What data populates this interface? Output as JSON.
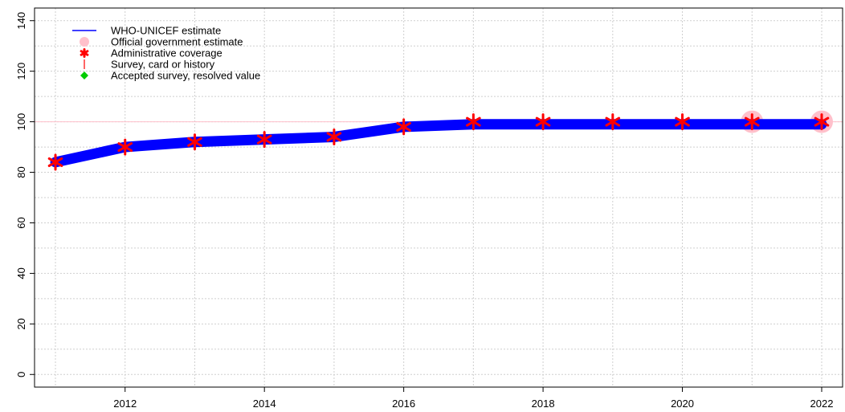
{
  "chart_data": {
    "type": "line",
    "title": "",
    "xlabel": "",
    "ylabel": "",
    "xlim": [
      2010.7,
      2022.3
    ],
    "ylim": [
      -5,
      145
    ],
    "x_ticks": [
      2012,
      2014,
      2016,
      2018,
      2020,
      2022
    ],
    "y_ticks": [
      0,
      20,
      40,
      60,
      80,
      100,
      120,
      140
    ],
    "grid": true,
    "reference_line": 100,
    "legend": {
      "position": "top-left",
      "items": [
        {
          "label": "WHO-UNICEF estimate",
          "marker": "line",
          "color": "#0000ff"
        },
        {
          "label": "Official government estimate",
          "marker": "circle",
          "color": "#ffc0cb"
        },
        {
          "label": "Administrative coverage",
          "marker": "asterisk",
          "color": "#ff0000"
        },
        {
          "label": "Survey, card or history",
          "marker": "vbar",
          "color": "#ff0000"
        },
        {
          "label": "Accepted survey, resolved value",
          "marker": "diamond",
          "color": "#00cc00"
        }
      ]
    },
    "series": [
      {
        "name": "WHO-UNICEF estimate",
        "kind": "line",
        "color": "#0000ff",
        "x": [
          2011,
          2012,
          2013,
          2014,
          2015,
          2016,
          2017,
          2018,
          2019,
          2020,
          2021,
          2022
        ],
        "values": [
          84,
          90,
          92,
          93,
          94,
          98,
          99,
          99,
          99,
          99,
          99,
          99
        ]
      },
      {
        "name": "Official government estimate",
        "kind": "circle",
        "color": "#ffc0cb",
        "x": [
          2021,
          2022
        ],
        "values": [
          100,
          100
        ]
      },
      {
        "name": "Administrative coverage",
        "kind": "asterisk",
        "color": "#ff0000",
        "x": [
          2011,
          2012,
          2013,
          2014,
          2015,
          2016,
          2017,
          2018,
          2019,
          2020,
          2021,
          2022
        ],
        "values": [
          84,
          90,
          92,
          93,
          94,
          98,
          100,
          100,
          100,
          100,
          100,
          100
        ]
      }
    ]
  }
}
